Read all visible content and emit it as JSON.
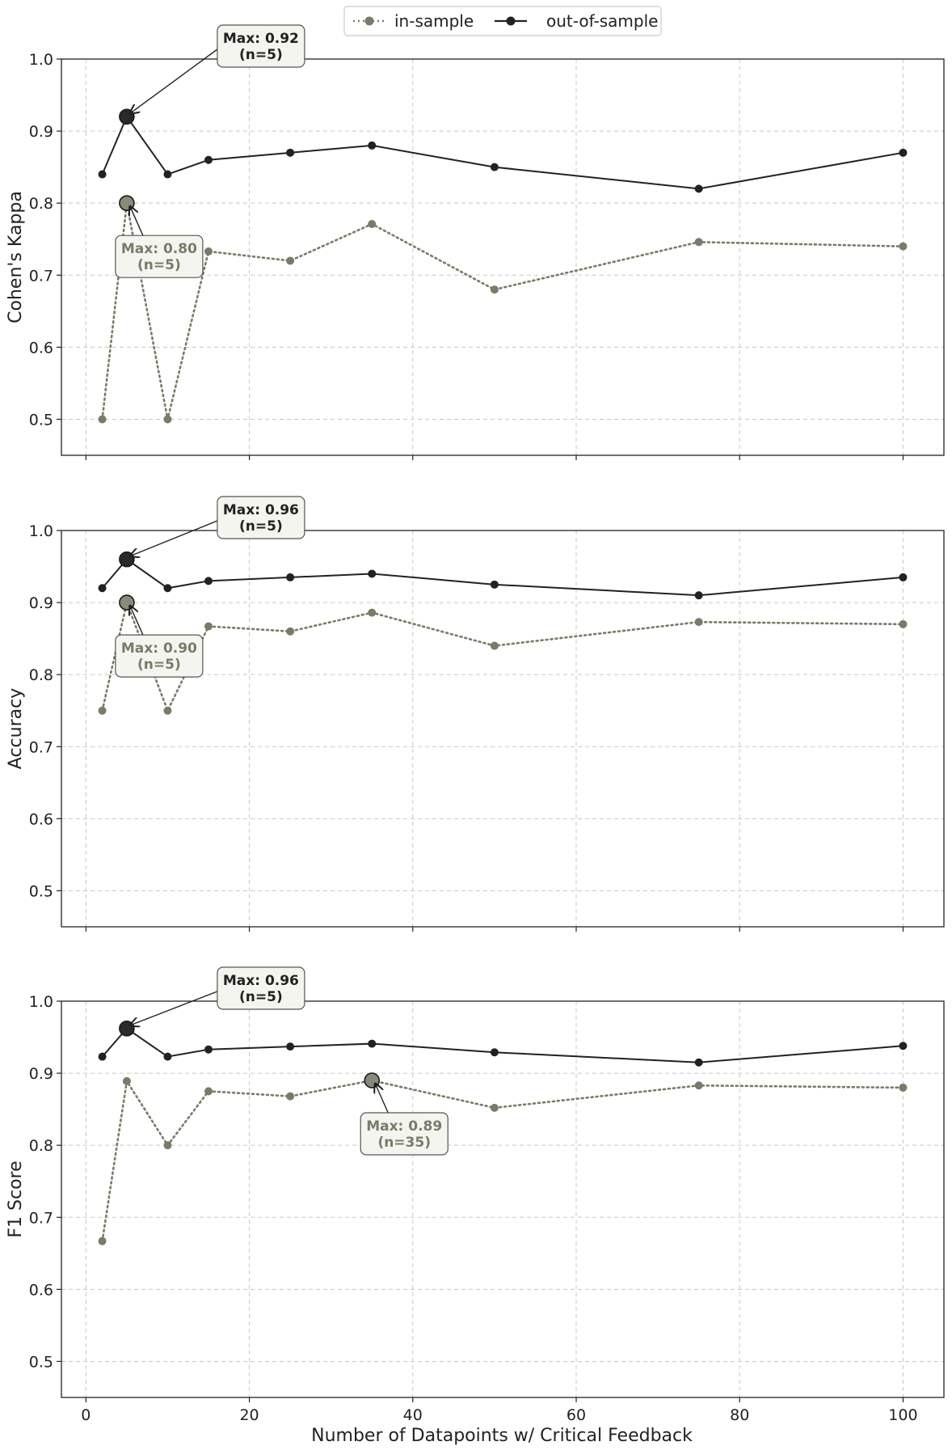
{
  "chart_data": {
    "type": "line",
    "legend": {
      "placement": "top-center",
      "entries": [
        "in-sample",
        "out-of-sample"
      ]
    },
    "xlabel": "Number of Datapoints w/ Critical Feedback",
    "xlim": [
      -3,
      105
    ],
    "xticks": [
      0,
      20,
      40,
      60,
      80,
      100
    ],
    "grid": true,
    "colors": {
      "in_sample": "#7a7a68",
      "out_of_sample": "#222222",
      "annotation_bg": "#f5f5ef",
      "grid": "#c8c8c8"
    },
    "x": [
      2,
      5,
      10,
      15,
      25,
      35,
      50,
      75,
      100
    ],
    "panels": [
      {
        "ylabel": "Cohen's Kappa",
        "ylim": [
          0.45,
          1.0
        ],
        "yticks": [
          0.5,
          0.6,
          0.7,
          0.8,
          0.9,
          1.0
        ],
        "series": [
          {
            "name": "in-sample",
            "values": [
              0.5,
              0.8,
              0.5,
              0.733,
              0.72,
              0.771,
              0.68,
              0.746,
              0.74
            ]
          },
          {
            "name": "out-of-sample",
            "values": [
              0.84,
              0.92,
              0.84,
              0.86,
              0.87,
              0.88,
              0.85,
              0.82,
              0.87
            ]
          }
        ],
        "annotations": [
          {
            "series": "out-of-sample",
            "x": 5,
            "y": 0.92,
            "line1": "Max: 0.92",
            "line2": "(n=5)"
          },
          {
            "series": "in-sample",
            "x": 5,
            "y": 0.8,
            "line1": "Max: 0.80",
            "line2": "(n=5)"
          }
        ]
      },
      {
        "ylabel": "Accuracy",
        "ylim": [
          0.45,
          1.0
        ],
        "yticks": [
          0.5,
          0.6,
          0.7,
          0.8,
          0.9,
          1.0
        ],
        "series": [
          {
            "name": "in-sample",
            "values": [
              0.75,
              0.9,
              0.75,
              0.867,
              0.86,
              0.886,
              0.84,
              0.873,
              0.87
            ]
          },
          {
            "name": "out-of-sample",
            "values": [
              0.92,
              0.96,
              0.92,
              0.93,
              0.935,
              0.94,
              0.925,
              0.91,
              0.935
            ]
          }
        ],
        "annotations": [
          {
            "series": "out-of-sample",
            "x": 5,
            "y": 0.96,
            "line1": "Max: 0.96",
            "line2": "(n=5)"
          },
          {
            "series": "in-sample",
            "x": 5,
            "y": 0.9,
            "line1": "Max: 0.90",
            "line2": "(n=5)"
          }
        ]
      },
      {
        "ylabel": "F1 Score",
        "ylim": [
          0.45,
          1.0
        ],
        "yticks": [
          0.5,
          0.6,
          0.7,
          0.8,
          0.9,
          1.0
        ],
        "series": [
          {
            "name": "in-sample",
            "values": [
              0.667,
              0.889,
              0.8,
              0.875,
              0.868,
              0.89,
              0.852,
              0.883,
              0.88
            ]
          },
          {
            "name": "out-of-sample",
            "values": [
              0.923,
              0.962,
              0.923,
              0.933,
              0.937,
              0.941,
              0.929,
              0.915,
              0.938
            ]
          }
        ],
        "annotations": [
          {
            "series": "out-of-sample",
            "x": 5,
            "y": 0.962,
            "line1": "Max: 0.96",
            "line2": "(n=5)"
          },
          {
            "series": "in-sample",
            "x": 35,
            "y": 0.89,
            "line1": "Max: 0.89",
            "line2": "(n=35)"
          }
        ]
      }
    ]
  }
}
